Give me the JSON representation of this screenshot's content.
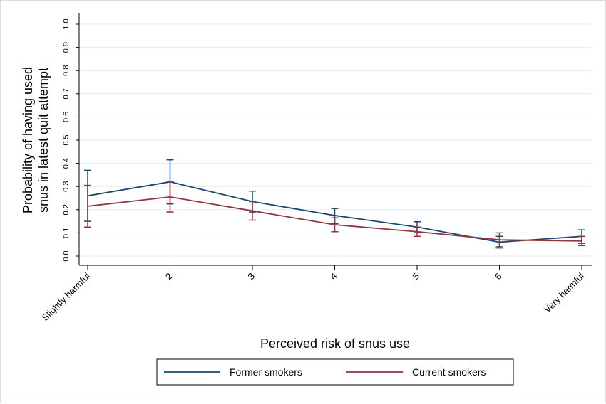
{
  "chart_data": {
    "type": "line",
    "xlabel": "Perceived risk of snus use",
    "ylabel_lines": [
      "Probability of having used",
      "snus in latest quit attempt"
    ],
    "x_tick_labels": [
      "Slightly harmful",
      "2",
      "3",
      "4",
      "5",
      "6",
      "Very harmful"
    ],
    "y_ticks": [
      "0.0",
      "0.1",
      "0.2",
      "0.3",
      "0.4",
      "0.5",
      "0.6",
      "0.7",
      "0.8",
      "0.9",
      "1.0"
    ],
    "ylim": [
      0,
      1
    ],
    "grid": true,
    "legend_position": "bottom",
    "series": [
      {
        "name": "Former smokers",
        "color": "#1a476f",
        "values": [
          0.26,
          0.32,
          0.235,
          0.175,
          0.125,
          0.06,
          0.085
        ],
        "ci_low": [
          0.15,
          0.225,
          0.19,
          0.14,
          0.1,
          0.035,
          0.055
        ],
        "ci_high": [
          0.37,
          0.415,
          0.28,
          0.205,
          0.148,
          0.085,
          0.113
        ]
      },
      {
        "name": "Current smokers",
        "color": "#90353b",
        "values": [
          0.215,
          0.255,
          0.195,
          0.135,
          0.105,
          0.07,
          0.065
        ],
        "ci_low": [
          0.125,
          0.19,
          0.155,
          0.105,
          0.085,
          0.04,
          0.045
        ],
        "ci_high": [
          0.305,
          0.32,
          0.235,
          0.165,
          0.125,
          0.1,
          0.085
        ]
      }
    ]
  }
}
